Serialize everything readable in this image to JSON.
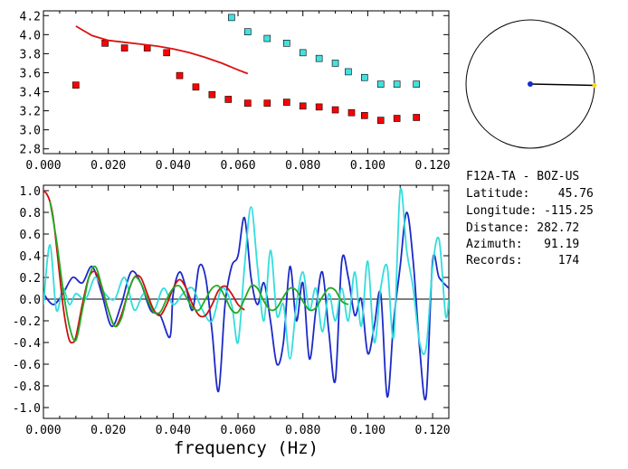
{
  "chart_data": [
    {
      "type": "scatter",
      "xlim": [
        0.0,
        0.125
      ],
      "ylim": [
        2.75,
        4.25
      ],
      "x_ticks": [
        "0.000",
        "0.020",
        "0.040",
        "0.060",
        "0.080",
        "0.100",
        "0.120"
      ],
      "y_ticks": [
        "2.8",
        "3.0",
        "3.2",
        "3.4",
        "3.6",
        "3.8",
        "4.0",
        "4.2"
      ],
      "series": [
        {
          "color": "#ff0000",
          "marker": "square",
          "points": [
            [
              0.01,
              3.47
            ],
            [
              0.019,
              3.91
            ],
            [
              0.025,
              3.86
            ],
            [
              0.032,
              3.86
            ],
            [
              0.038,
              3.81
            ],
            [
              0.042,
              3.57
            ],
            [
              0.047,
              3.45
            ],
            [
              0.052,
              3.37
            ],
            [
              0.057,
              3.32
            ],
            [
              0.063,
              3.28
            ],
            [
              0.069,
              3.28
            ],
            [
              0.075,
              3.29
            ],
            [
              0.08,
              3.25
            ],
            [
              0.085,
              3.24
            ],
            [
              0.09,
              3.21
            ],
            [
              0.095,
              3.18
            ],
            [
              0.099,
              3.15
            ],
            [
              0.104,
              3.1
            ],
            [
              0.109,
              3.12
            ],
            [
              0.115,
              3.13
            ]
          ]
        },
        {
          "color": "#44e0e0",
          "marker": "square",
          "points": [
            [
              0.058,
              4.18
            ],
            [
              0.063,
              4.03
            ],
            [
              0.069,
              3.96
            ],
            [
              0.075,
              3.91
            ],
            [
              0.08,
              3.81
            ],
            [
              0.085,
              3.75
            ],
            [
              0.09,
              3.7
            ],
            [
              0.094,
              3.61
            ],
            [
              0.099,
              3.55
            ],
            [
              0.104,
              3.48
            ],
            [
              0.109,
              3.48
            ],
            [
              0.115,
              3.48
            ]
          ]
        },
        {
          "color": "#dd1111",
          "marker": "line",
          "points": [
            [
              0.01,
              4.09
            ],
            [
              0.012,
              4.05
            ],
            [
              0.015,
              3.99
            ],
            [
              0.02,
              3.94
            ],
            [
              0.025,
              3.92
            ],
            [
              0.03,
              3.9
            ],
            [
              0.035,
              3.88
            ],
            [
              0.04,
              3.85
            ],
            [
              0.045,
              3.81
            ],
            [
              0.05,
              3.76
            ],
            [
              0.055,
              3.7
            ],
            [
              0.06,
              3.63
            ],
            [
              0.063,
              3.59
            ]
          ]
        }
      ]
    },
    {
      "type": "line",
      "xlabel": "frequency (Hz)",
      "xlim": [
        0.0,
        0.125
      ],
      "ylim": [
        -1.1,
        1.05
      ],
      "x_ticks": [
        "0.000",
        "0.020",
        "0.040",
        "0.060",
        "0.080",
        "0.100",
        "0.120"
      ],
      "y_ticks": [
        "1.0",
        "0.8",
        "0.6",
        "0.4",
        "0.2",
        "0.0",
        "-0.2",
        "-0.4",
        "-0.6",
        "-0.8",
        "-1.0"
      ],
      "series": [
        {
          "color": "#1c2ac8",
          "x": [
            0.0,
            0.003,
            0.006,
            0.009,
            0.012,
            0.015,
            0.018,
            0.021,
            0.024,
            0.027,
            0.03,
            0.033,
            0.036,
            0.039,
            0.04,
            0.042,
            0.044,
            0.046,
            0.048,
            0.05,
            0.052,
            0.054,
            0.056,
            0.058,
            0.06,
            0.062,
            0.064,
            0.066,
            0.068,
            0.07,
            0.072,
            0.074,
            0.076,
            0.078,
            0.08,
            0.082,
            0.084,
            0.086,
            0.088,
            0.09,
            0.092,
            0.094,
            0.096,
            0.098,
            0.1,
            0.102,
            0.104,
            0.106,
            0.108,
            0.11,
            0.112,
            0.114,
            0.116,
            0.118,
            0.12,
            0.122,
            0.125
          ],
          "values": [
            0.05,
            -0.05,
            0.05,
            0.2,
            0.15,
            0.3,
            0.05,
            -0.25,
            -0.05,
            0.25,
            0.15,
            -0.1,
            -0.15,
            -0.35,
            0.05,
            0.25,
            0.1,
            -0.1,
            0.3,
            0.2,
            -0.3,
            -0.85,
            -0.05,
            0.3,
            0.4,
            0.75,
            0.2,
            -0.05,
            0.15,
            -0.2,
            -0.6,
            -0.4,
            0.3,
            -0.2,
            0.15,
            -0.55,
            -0.1,
            0.25,
            -0.3,
            -0.75,
            0.35,
            0.2,
            -0.15,
            0.0,
            -0.5,
            -0.25,
            0.05,
            -0.9,
            -0.2,
            0.3,
            0.8,
            0.35,
            -0.45,
            -0.9,
            0.35,
            0.2,
            0.1
          ]
        },
        {
          "color": "#33dddd",
          "x": [
            0.0,
            0.002,
            0.004,
            0.006,
            0.008,
            0.01,
            0.013,
            0.016,
            0.019,
            0.022,
            0.025,
            0.028,
            0.031,
            0.034,
            0.037,
            0.04,
            0.043,
            0.046,
            0.049,
            0.052,
            0.055,
            0.058,
            0.06,
            0.062,
            0.064,
            0.066,
            0.068,
            0.07,
            0.072,
            0.074,
            0.076,
            0.078,
            0.08,
            0.082,
            0.084,
            0.086,
            0.088,
            0.09,
            0.092,
            0.094,
            0.096,
            0.098,
            0.1,
            0.102,
            0.104,
            0.106,
            0.108,
            0.11,
            0.112,
            0.114,
            0.116,
            0.118,
            0.12,
            0.122,
            0.124,
            0.125
          ],
          "values": [
            -0.05,
            0.5,
            -0.1,
            0.1,
            -0.05,
            0.05,
            0.0,
            0.2,
            0.05,
            0.0,
            0.2,
            -0.1,
            0.05,
            -0.1,
            0.1,
            -0.05,
            0.05,
            0.1,
            -0.1,
            -0.2,
            0.1,
            -0.05,
            -0.4,
            0.3,
            0.85,
            0.3,
            -0.2,
            0.45,
            -0.15,
            -0.05,
            -0.55,
            -0.05,
            0.25,
            -0.1,
            0.1,
            -0.3,
            0.05,
            -0.2,
            0.1,
            -0.2,
            0.25,
            -0.25,
            0.35,
            -0.4,
            0.1,
            0.3,
            -0.35,
            1.0,
            0.45,
            0.1,
            -0.4,
            -0.45,
            0.3,
            0.55,
            -0.15,
            0.0
          ]
        },
        {
          "color": "#cc1111",
          "x": [
            0.0,
            0.001,
            0.002,
            0.003,
            0.004,
            0.005,
            0.006,
            0.007,
            0.008,
            0.009,
            0.01,
            0.012,
            0.014,
            0.016,
            0.018,
            0.02,
            0.022,
            0.024,
            0.026,
            0.028,
            0.03,
            0.032,
            0.034,
            0.036,
            0.038,
            0.04,
            0.042,
            0.044,
            0.046,
            0.048,
            0.05,
            0.052,
            0.054,
            0.056,
            0.058,
            0.06,
            0.062
          ],
          "values": [
            1.0,
            0.97,
            0.9,
            0.75,
            0.5,
            0.22,
            -0.05,
            -0.25,
            -0.38,
            -0.4,
            -0.35,
            -0.05,
            0.2,
            0.25,
            0.1,
            -0.1,
            -0.25,
            -0.15,
            0.05,
            0.2,
            0.2,
            0.05,
            -0.1,
            -0.15,
            -0.05,
            0.1,
            0.18,
            0.1,
            -0.05,
            -0.15,
            -0.15,
            -0.05,
            0.08,
            0.12,
            0.05,
            -0.05,
            -0.1
          ]
        },
        {
          "color": "#22aa22",
          "x": [
            0.002,
            0.004,
            0.006,
            0.008,
            0.01,
            0.012,
            0.014,
            0.016,
            0.018,
            0.02,
            0.022,
            0.024,
            0.026,
            0.028,
            0.03,
            0.032,
            0.034,
            0.036,
            0.038,
            0.04,
            0.042,
            0.044,
            0.046,
            0.048,
            0.05,
            0.052,
            0.054,
            0.056,
            0.058,
            0.06,
            0.062,
            0.064,
            0.066,
            0.068,
            0.07,
            0.072,
            0.074,
            0.076,
            0.078,
            0.08,
            0.082,
            0.084,
            0.086,
            0.088,
            0.09,
            0.092,
            0.094
          ],
          "values": [
            0.9,
            0.55,
            0.1,
            -0.25,
            -0.38,
            -0.1,
            0.2,
            0.3,
            0.12,
            -0.1,
            -0.25,
            -0.18,
            0.05,
            0.2,
            0.15,
            0.0,
            -0.12,
            -0.12,
            0.0,
            0.1,
            0.12,
            0.02,
            -0.08,
            -0.1,
            0.0,
            0.1,
            0.12,
            0.02,
            -0.1,
            -0.12,
            0.0,
            0.12,
            0.1,
            -0.02,
            -0.1,
            -0.08,
            0.02,
            0.1,
            0.08,
            -0.02,
            -0.1,
            -0.08,
            0.02,
            0.1,
            0.08,
            -0.02,
            -0.05
          ]
        }
      ]
    },
    {
      "type": "polar",
      "azimuth_deg": 91.19,
      "circle_color": "#000000",
      "center_color": "#1c2ac8",
      "end_color": "#ffdd00"
    }
  ],
  "info": {
    "station": "F12A-TA - BOZ-US",
    "lines": [
      "Latitude:    45.76",
      "Longitude: -115.25",
      "Distance: 282.72",
      "Azimuth:   91.19",
      "Records:     174"
    ]
  }
}
